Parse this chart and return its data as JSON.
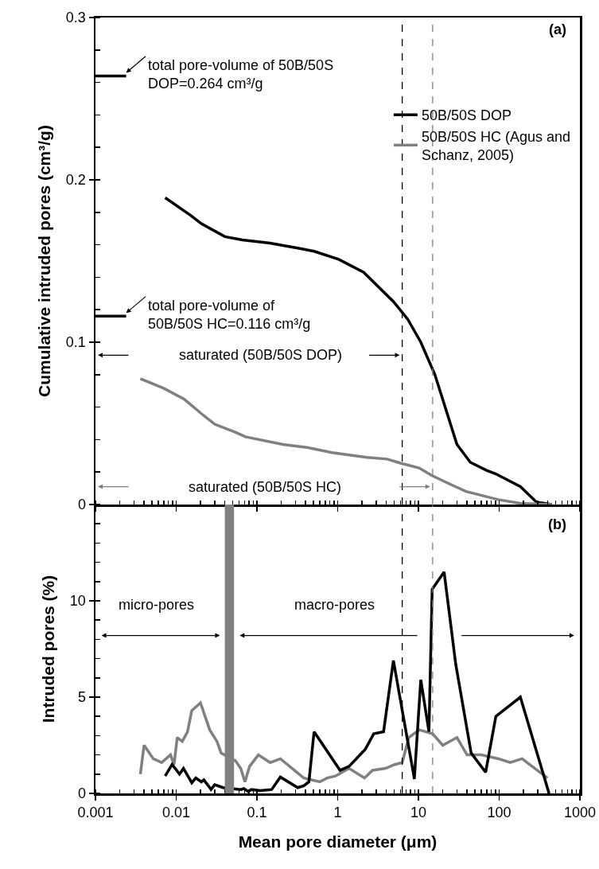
{
  "chart_data": [
    {
      "type": "line",
      "ylabel": "Cumulative intruded pores (cm³/g)",
      "x": [
        0.0073,
        0.0152,
        0.0205,
        0.04,
        0.066,
        0.145,
        0.32,
        0.51,
        1.03,
        2.1,
        4.9,
        7.4,
        10.7,
        16,
        30,
        44,
        70,
        90,
        183,
        290,
        450
      ],
      "series": [
        {
          "name": "50B/50S DOP",
          "color": "#000000",
          "values": [
            0.189,
            0.178,
            0.173,
            0.165,
            0.163,
            0.161,
            0.158,
            0.156,
            0.151,
            0.143,
            0.125,
            0.114,
            0.1,
            0.08,
            0.037,
            0.026,
            0.021,
            0.019,
            0.011,
            0.0015,
            0
          ]
        },
        {
          "name": "50B/50S HC (Agus and Schanz, 2005)",
          "color": "#808080",
          "x": [
            0.0036,
            0.007,
            0.0125,
            0.0205,
            0.03,
            0.054,
            0.072,
            0.21,
            0.43,
            0.85,
            2.3,
            4.1,
            6,
            10.2,
            14.5,
            23.6,
            39,
            98,
            183,
            450
          ],
          "values": [
            0.0775,
            0.0716,
            0.065,
            0.056,
            0.0495,
            0.0445,
            0.0417,
            0.037,
            0.035,
            0.032,
            0.029,
            0.028,
            0.0255,
            0.0225,
            0.018,
            0.013,
            0.008,
            0.003,
            0.0007,
            0
          ]
        },
        {
          "color": "#000000",
          "x": [
            0.001,
            0.0024
          ],
          "values": [
            0.264,
            0.264
          ]
        },
        {
          "color": "#000000",
          "x": [
            0.001,
            0.0024
          ],
          "values": [
            0.116,
            0.116
          ]
        }
      ],
      "xlim": [
        0.001,
        1000
      ],
      "xticks": [
        0.001,
        0.01,
        0.1,
        1,
        10,
        100,
        1000
      ],
      "ylim": [
        0,
        0.3
      ],
      "yticks": [
        0,
        0.1,
        0.2,
        0.3
      ],
      "log": "x",
      "tick_labels": "y",
      "legend": "top right",
      "line_style": "solid",
      "ref_lines": [
        {
          "axis": "x",
          "value": 6.3,
          "color": "#000000",
          "line_style": "dashed"
        },
        {
          "axis": "x",
          "value": 15,
          "color": "#808080",
          "line_style": "dashed"
        }
      ],
      "annotations": [
        "(a)",
        {
          "text": "total pore-volume of 50B/50S DOP=0.264 cm³/g",
          "x": 0.0024,
          "y": 0.264
        },
        {
          "text": "total pore-volume of 50B/50S HC=0.116 cm³/g",
          "x": 0.0024,
          "y": 0.116
        },
        "saturated (50B/50S DOP)",
        "saturated (50B/50S HC)"
      ]
    },
    {
      "type": "line",
      "xlabel": "Mean pore diameter (μm)",
      "ylabel": "Intruded pores (%)",
      "series": [
        {
          "color": "#808080",
          "x": [
            0.0036,
            0.004,
            0.0052,
            0.0066,
            0.0085,
            0.0094,
            0.0103,
            0.0119,
            0.0138,
            0.0156,
            0.02,
            0.026,
            0.032,
            0.036,
            0.054,
            0.063,
            0.071,
            0.081,
            0.104,
            0.146,
            0.195,
            0.38,
            0.6,
            0.74,
            0.94,
            1.38,
            2.15,
            2.7,
            3.9,
            5.1,
            6.3,
            7.6,
            10.2,
            15,
            20,
            30,
            40,
            60,
            98,
            137,
            192,
            396
          ],
          "values": [
            1.0,
            2.5,
            1.8,
            1.6,
            2.0,
            1.5,
            2.9,
            2.7,
            3.2,
            4.3,
            4.7,
            3.3,
            2.7,
            2.1,
            1.7,
            1.3,
            0.6,
            1.4,
            2.0,
            1.6,
            1.8,
            0.8,
            0.6,
            0.8,
            0.9,
            1.3,
            0.8,
            1.2,
            1.3,
            1.5,
            1.6,
            2.9,
            3.3,
            3.1,
            2.5,
            2.9,
            2.0,
            2.0,
            1.8,
            1.6,
            1.8,
            0.8
          ]
        },
        {
          "color": "#000000",
          "x": [
            0.0073,
            0.0089,
            0.011,
            0.0123,
            0.0156,
            0.0175,
            0.0205,
            0.022,
            0.025,
            0.027,
            0.03,
            0.038,
            0.063,
            0.069,
            0.078,
            0.085,
            0.11,
            0.152,
            0.195,
            0.32,
            0.38,
            0.44,
            0.51,
            1.07,
            1.38,
            1.7,
            2.2,
            2.8,
            3.7,
            4.9,
            8.7,
            8.9,
            10.7,
            13.5,
            14.8,
            20.8,
            29,
            45,
            68,
            91,
            183,
            415
          ],
          "values": [
            0.9,
            1.5,
            1.0,
            1.3,
            0.55,
            0.8,
            0.6,
            0.7,
            0.4,
            0.2,
            0.45,
            0.3,
            0.2,
            0.25,
            0.1,
            0.2,
            0.15,
            0.2,
            0.85,
            0.3,
            0.4,
            0.6,
            3.2,
            1.2,
            1.4,
            1.8,
            2.3,
            3.1,
            3.2,
            6.9,
            1.0,
            0.75,
            5.9,
            3.2,
            10.6,
            11.5,
            6.7,
            2.1,
            1.1,
            4.0,
            5.0,
            0
          ]
        }
      ],
      "xlim": [
        0.001,
        1000
      ],
      "xticks": [
        0.001,
        0.01,
        0.1,
        1,
        10,
        100,
        1000
      ],
      "ylim": [
        0,
        15
      ],
      "yticks": [
        0,
        5,
        10
      ],
      "log": "x",
      "line_style": "solid",
      "ref_lines": [
        {
          "axis": "x",
          "value": 6.3,
          "color": "#000000",
          "line_style": "dashed"
        },
        {
          "axis": "x",
          "value": 15,
          "color": "#808080",
          "line_style": "dashed"
        }
      ],
      "bands": [
        {
          "axis": "x",
          "from": 0.04,
          "to": 0.052,
          "color": "#808080"
        }
      ],
      "annotations": [
        "(b)",
        "micro-pores",
        "macro-pores"
      ]
    }
  ]
}
